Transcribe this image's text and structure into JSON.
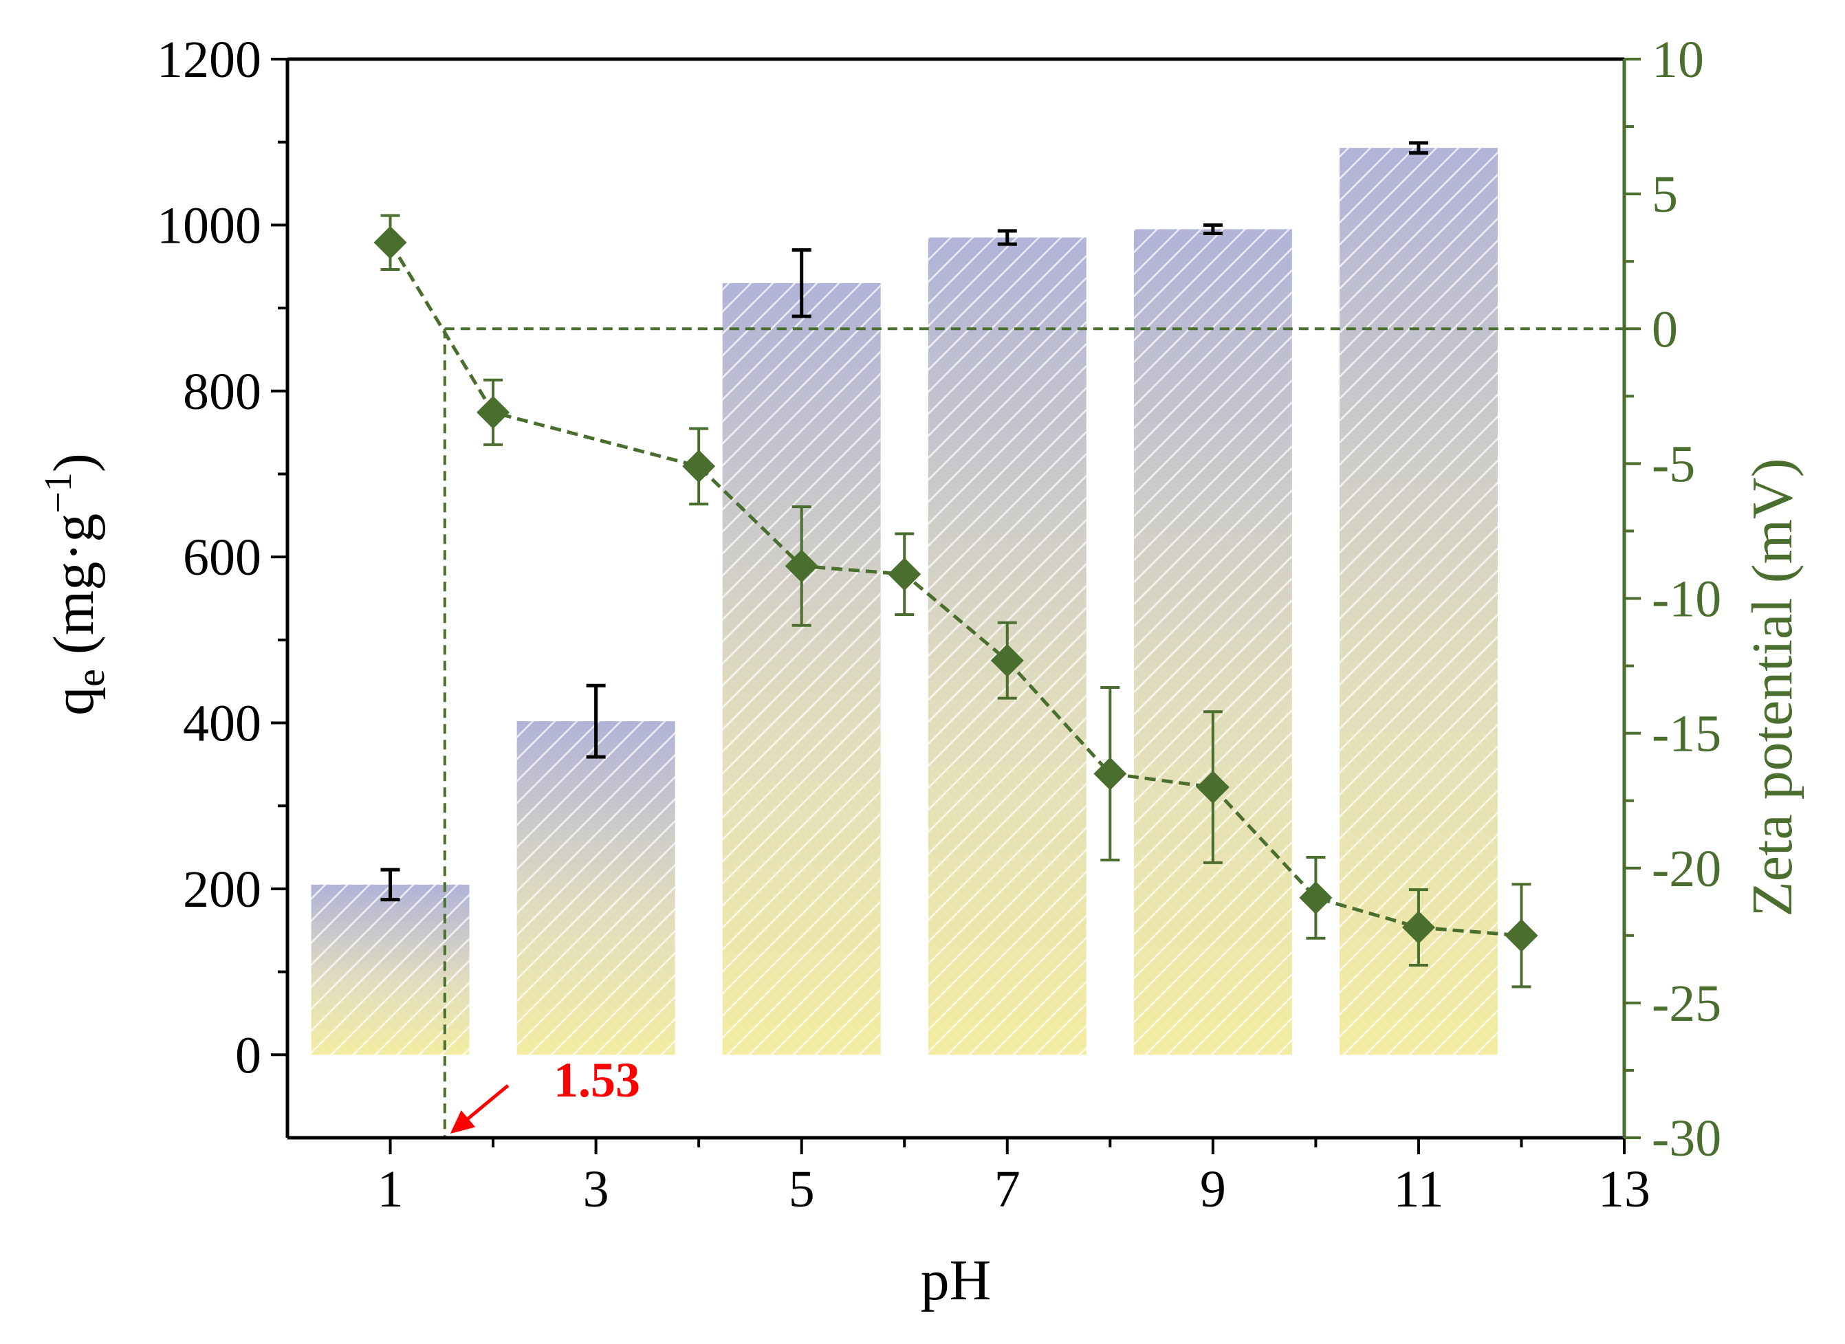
{
  "chart_data": {
    "type": "bar",
    "title": "",
    "xlabel": "pH",
    "ylabel": {
      "base": "q",
      "sub": "e",
      "unit_open": " (mg·g",
      "unit_sup": "−1",
      "unit_close": ")"
    },
    "y2label": "Zeta potential (mV)",
    "xlim": [
      0,
      13
    ],
    "ylim": [
      -100,
      1200
    ],
    "y2lim": [
      -30,
      10
    ],
    "x_ticks": [
      1,
      3,
      5,
      7,
      9,
      11,
      13
    ],
    "y_ticks": [
      0,
      200,
      400,
      600,
      800,
      1000,
      1200
    ],
    "y2_ticks": [
      -30,
      -25,
      -20,
      -15,
      -10,
      -5,
      0,
      5,
      10
    ],
    "x_tick_labels": [
      "1",
      "3",
      "5",
      "7",
      "9",
      "11",
      "13"
    ],
    "y_tick_labels": [
      "0",
      "200",
      "400",
      "600",
      "800",
      "1000",
      "1200"
    ],
    "y2_tick_labels": [
      "-30",
      "-25",
      "-20",
      "-15",
      "-10",
      "-5",
      "0",
      "5",
      "10"
    ],
    "bar_series": {
      "name": "qe",
      "x": [
        1,
        3,
        5,
        7,
        9,
        11
      ],
      "values": [
        205,
        402,
        930,
        985,
        995,
        1093
      ],
      "errors": [
        18,
        43,
        40,
        8,
        5,
        6
      ]
    },
    "line_series": {
      "name": "Zeta potential",
      "axis": "right",
      "x": [
        1,
        2,
        4,
        5,
        6,
        7,
        8,
        9,
        10,
        11,
        12
      ],
      "values": [
        3.2,
        -3.1,
        -5.1,
        -8.8,
        -9.1,
        -12.3,
        -16.5,
        -17.0,
        -21.1,
        -22.2,
        -22.5
      ],
      "errors": [
        1.0,
        1.2,
        1.4,
        2.2,
        1.5,
        1.4,
        3.2,
        2.8,
        1.5,
        1.4,
        1.9
      ]
    },
    "reference_lines": {
      "zeta_zero": 0,
      "pzc_x": 1.53
    },
    "annotation": {
      "label": "1.53",
      "x": 1.53
    }
  },
  "colors": {
    "axis": "#000000",
    "zeta": "#4a6e2e",
    "bar_top": "#b1b3d8",
    "bar_bottom": "#f3eca2",
    "annotation": "#ff0000"
  }
}
